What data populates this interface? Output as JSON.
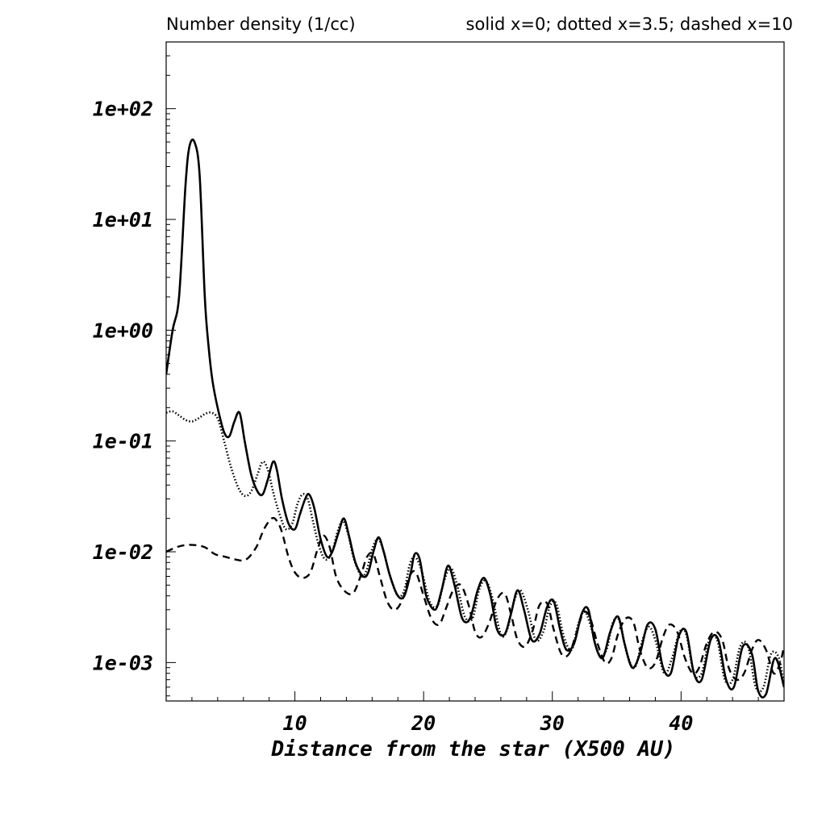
{
  "chart_data": {
    "type": "line",
    "title": "Number density (1/cc)",
    "subtitle": "solid x=0; dotted x=3.5; dashed x=10",
    "xlabel": "Distance from the star (X500 AU)",
    "ylabel": "",
    "xlim": [
      0,
      48
    ],
    "ylim": [
      0.00045,
      400
    ],
    "yscale": "log",
    "x_ticks": [
      10,
      20,
      30,
      40
    ],
    "x_tick_labels": [
      "10",
      "20",
      "30",
      "40"
    ],
    "y_ticks": [
      0.001,
      0.01,
      0.1,
      1,
      10,
      100
    ],
    "y_tick_labels": [
      "1e-03",
      "1e-02",
      "1e-01",
      "1e+00",
      "1e+01",
      "1e+02"
    ],
    "grid": false,
    "series": [
      {
        "style": "solid",
        "x": [
          0,
          0.5,
          1.0,
          1.5,
          1.8,
          2.2,
          2.6,
          3.0,
          3.3,
          3.6,
          4.0,
          4.5,
          4.9,
          5.3,
          5.7,
          6.1,
          6.6,
          7.1,
          7.5,
          7.9,
          8.3,
          8.6,
          9.0,
          9.5,
          10.0,
          10.4,
          10.8,
          11.1,
          11.5,
          12.0,
          12.5,
          12.9,
          13.4,
          13.8,
          14.2,
          14.7,
          15.3,
          15.7,
          16.1,
          16.5,
          16.9,
          17.4,
          18.0,
          18.5,
          19.0,
          19.3,
          19.7,
          20.2,
          20.9,
          21.4,
          21.9,
          22.4,
          23.0,
          23.6,
          24.2,
          24.7,
          25.2,
          25.7,
          26.3,
          26.8,
          27.3,
          27.8,
          28.4,
          29.0,
          29.6,
          30.1,
          30.6,
          31.1,
          31.7,
          32.3,
          32.8,
          33.3,
          33.9,
          34.5,
          35.1,
          35.6,
          36.2,
          36.8,
          37.4,
          38.0,
          38.6,
          39.2,
          39.8,
          40.4,
          41.0,
          41.6,
          42.3,
          42.9,
          43.5,
          44.1,
          44.8,
          45.5,
          46.0,
          46.6,
          47.3,
          48.0
        ],
        "y": [
          0.4,
          1.0,
          2.0,
          20,
          45,
          50,
          25,
          2.0,
          0.7,
          0.35,
          0.2,
          0.12,
          0.11,
          0.15,
          0.18,
          0.1,
          0.05,
          0.035,
          0.033,
          0.045,
          0.065,
          0.055,
          0.03,
          0.018,
          0.016,
          0.022,
          0.03,
          0.033,
          0.025,
          0.013,
          0.009,
          0.01,
          0.015,
          0.02,
          0.014,
          0.008,
          0.006,
          0.0065,
          0.01,
          0.0135,
          0.01,
          0.006,
          0.004,
          0.004,
          0.0065,
          0.0095,
          0.0085,
          0.004,
          0.003,
          0.0045,
          0.0075,
          0.005,
          0.0025,
          0.0025,
          0.0045,
          0.0058,
          0.004,
          0.002,
          0.0018,
          0.0028,
          0.0045,
          0.003,
          0.0016,
          0.0018,
          0.0032,
          0.0036,
          0.002,
          0.0013,
          0.0015,
          0.0028,
          0.003,
          0.0015,
          0.0011,
          0.0019,
          0.0026,
          0.0015,
          0.0009,
          0.0012,
          0.0022,
          0.002,
          0.0009,
          0.0008,
          0.0017,
          0.0019,
          0.0008,
          0.0007,
          0.0016,
          0.0016,
          0.0007,
          0.0006,
          0.0014,
          0.0012,
          0.00055,
          0.00052,
          0.0011,
          0.0006
        ]
      },
      {
        "style": "dotted",
        "x": [
          0,
          0.5,
          1.0,
          1.5,
          2.0,
          2.5,
          3.0,
          3.5,
          4.0,
          4.5,
          5.0,
          5.6,
          6.1,
          6.6,
          7.1,
          7.5,
          7.9,
          8.3,
          8.8,
          9.3,
          9.8,
          10.2,
          10.6,
          11.0,
          11.4,
          11.9,
          12.4,
          12.9,
          13.3,
          13.7,
          14.1,
          14.6,
          15.2,
          15.6,
          16.0,
          16.4,
          16.8,
          17.4,
          18.0,
          18.5,
          18.9,
          19.3,
          19.8,
          20.5,
          21.1,
          21.6,
          22.1,
          22.6,
          23.2,
          23.8,
          24.3,
          24.8,
          25.3,
          26.0,
          26.5,
          27.0,
          27.5,
          28.1,
          28.7,
          29.3,
          29.8,
          30.3,
          30.9,
          31.5,
          32.0,
          32.5,
          33.0,
          33.6,
          34.2,
          34.7,
          35.2,
          35.8,
          36.4,
          37.0,
          37.5,
          38.0,
          38.7,
          39.3,
          39.9,
          40.4,
          41.0,
          41.6,
          42.2,
          42.8,
          43.4,
          44.0,
          44.6,
          45.2,
          45.8,
          46.4,
          47.0,
          47.6,
          48.0
        ],
        "y": [
          0.18,
          0.185,
          0.17,
          0.155,
          0.15,
          0.16,
          0.175,
          0.18,
          0.16,
          0.1,
          0.06,
          0.038,
          0.032,
          0.035,
          0.05,
          0.065,
          0.055,
          0.035,
          0.022,
          0.016,
          0.018,
          0.027,
          0.033,
          0.03,
          0.019,
          0.011,
          0.0085,
          0.01,
          0.015,
          0.019,
          0.015,
          0.0085,
          0.006,
          0.007,
          0.0105,
          0.013,
          0.011,
          0.006,
          0.004,
          0.0045,
          0.0075,
          0.009,
          0.007,
          0.0035,
          0.0033,
          0.0055,
          0.0072,
          0.005,
          0.0026,
          0.0025,
          0.0045,
          0.0055,
          0.004,
          0.0018,
          0.002,
          0.0035,
          0.0045,
          0.003,
          0.0016,
          0.0019,
          0.0032,
          0.0034,
          0.0017,
          0.0013,
          0.0022,
          0.0029,
          0.0021,
          0.0012,
          0.0013,
          0.0023,
          0.0024,
          0.0012,
          0.0009,
          0.0016,
          0.0021,
          0.0016,
          0.0008,
          0.0011,
          0.0019,
          0.0018,
          0.0008,
          0.0008,
          0.0016,
          0.0016,
          0.0007,
          0.0007,
          0.0014,
          0.0014,
          0.0006,
          0.0006,
          0.0012,
          0.0011,
          0.0006
        ]
      },
      {
        "style": "dashed",
        "x": [
          0,
          0.8,
          1.5,
          2.2,
          3.0,
          3.8,
          4.6,
          5.4,
          6.2,
          7.0,
          7.6,
          8.2,
          8.6,
          9.0,
          9.5,
          10.0,
          10.6,
          11.2,
          11.7,
          12.2,
          12.7,
          13.2,
          13.8,
          14.5,
          15.1,
          15.6,
          16.1,
          16.6,
          17.2,
          17.8,
          18.4,
          18.9,
          19.4,
          20.0,
          20.6,
          21.2,
          21.7,
          22.3,
          22.9,
          23.5,
          24.0,
          24.5,
          25.1,
          25.7,
          26.3,
          26.8,
          27.3,
          27.9,
          28.5,
          29.0,
          29.6,
          30.1,
          30.7,
          31.3,
          31.9,
          32.4,
          32.9,
          33.5,
          34.1,
          34.6,
          35.1,
          35.7,
          36.3,
          36.8,
          37.4,
          38.0,
          38.6,
          39.1,
          39.7,
          40.3,
          40.9,
          41.4,
          42.0,
          42.6,
          43.2,
          43.7,
          44.3,
          44.9,
          45.5,
          46.0,
          46.6,
          47.2,
          47.7,
          48.0
        ],
        "y": [
          0.01,
          0.011,
          0.0115,
          0.0115,
          0.011,
          0.0095,
          0.009,
          0.0085,
          0.0085,
          0.011,
          0.016,
          0.02,
          0.019,
          0.015,
          0.009,
          0.0065,
          0.0058,
          0.0065,
          0.01,
          0.014,
          0.011,
          0.006,
          0.0045,
          0.0042,
          0.006,
          0.009,
          0.0095,
          0.006,
          0.0035,
          0.003,
          0.0038,
          0.006,
          0.0065,
          0.004,
          0.0025,
          0.0022,
          0.003,
          0.0045,
          0.005,
          0.0033,
          0.0019,
          0.0017,
          0.0023,
          0.0037,
          0.0042,
          0.0027,
          0.0016,
          0.0014,
          0.002,
          0.0033,
          0.0034,
          0.002,
          0.0012,
          0.0012,
          0.0019,
          0.0028,
          0.0026,
          0.0015,
          0.001,
          0.0011,
          0.0018,
          0.0025,
          0.0023,
          0.0013,
          0.0009,
          0.001,
          0.0017,
          0.0022,
          0.0019,
          0.0011,
          0.0008,
          0.0009,
          0.0015,
          0.0019,
          0.0016,
          0.0009,
          0.0007,
          0.0008,
          0.0013,
          0.0016,
          0.0013,
          0.0008,
          0.001,
          0.0014
        ]
      }
    ]
  }
}
